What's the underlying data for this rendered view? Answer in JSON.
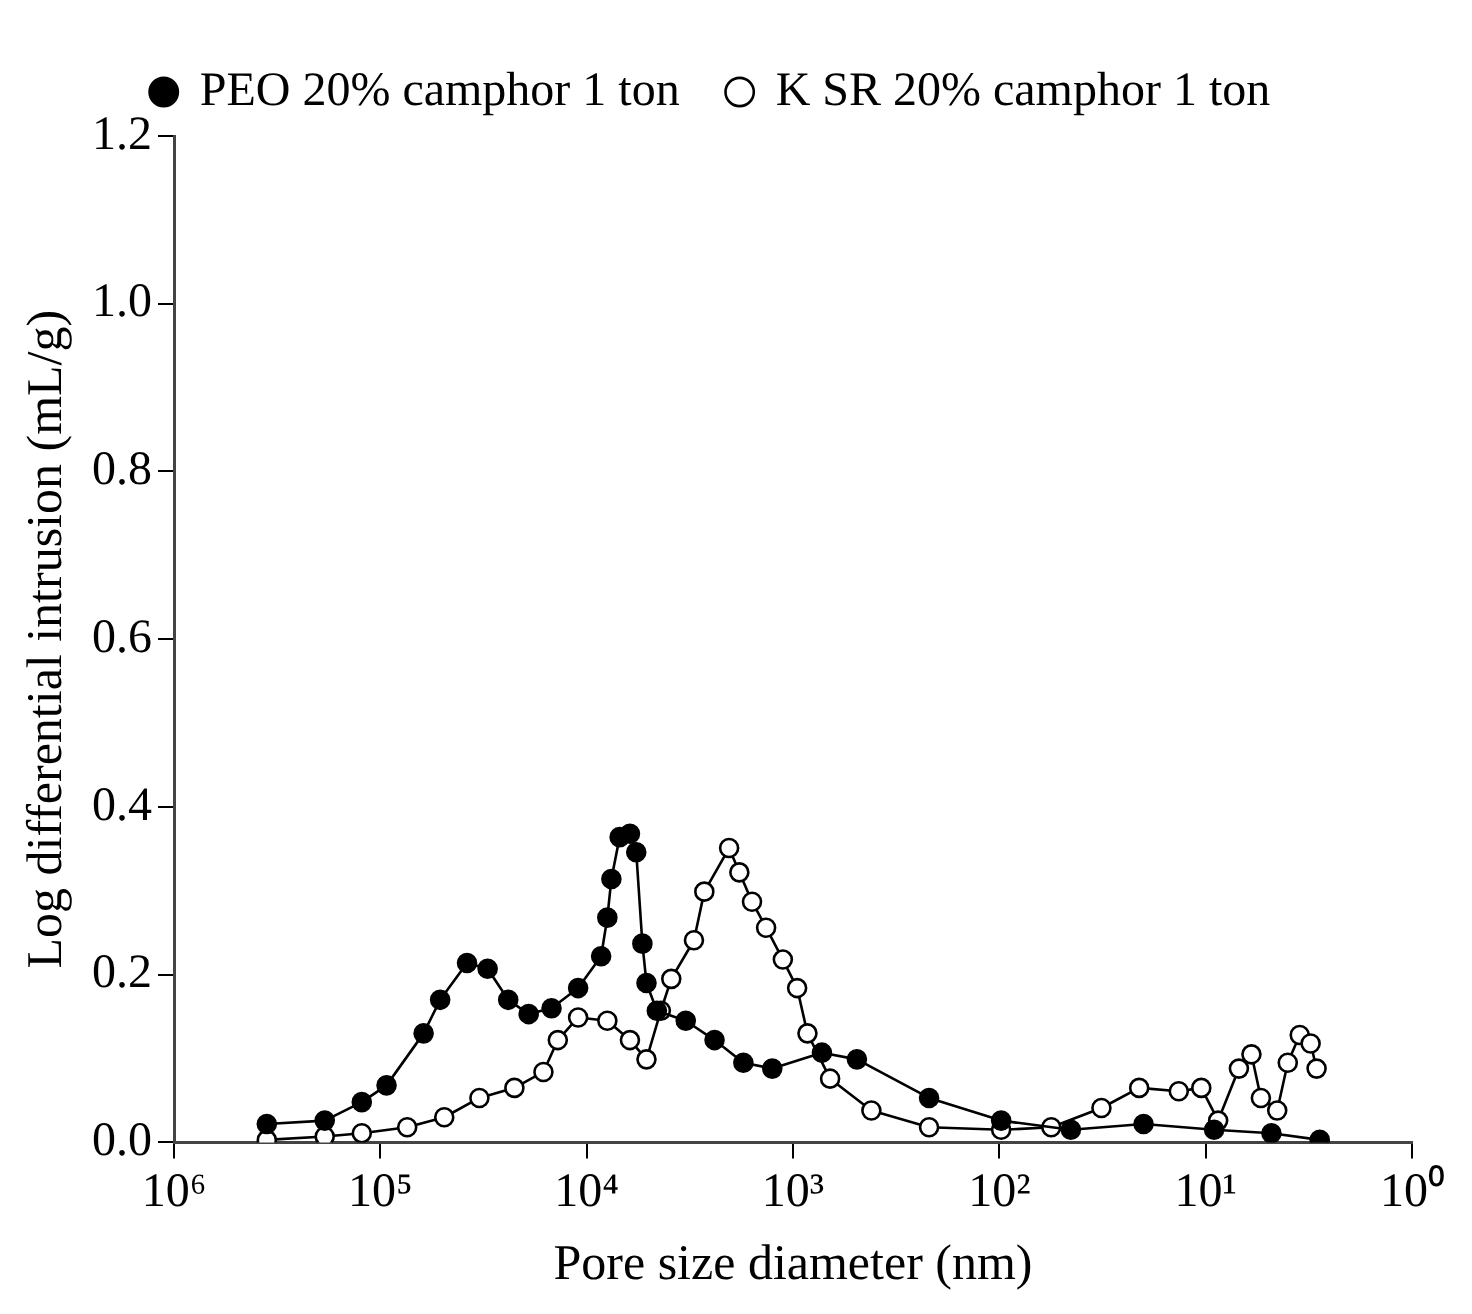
{
  "chart_data": {
    "type": "line",
    "xlabel": "Pore size diameter (nm)",
    "ylabel": "Log differential intrusion (mL/g)",
    "log": "x",
    "xlim": [
      1000000,
      1
    ],
    "xticks": [
      {
        "value": 1000000,
        "label": "10⁶"
      },
      {
        "value": 100000,
        "label": "10⁵"
      },
      {
        "value": 10000,
        "label": "10⁴"
      },
      {
        "value": 1000,
        "label": "10³"
      },
      {
        "value": 100,
        "label": "10²"
      },
      {
        "value": 10,
        "label": "10¹"
      },
      {
        "value": 1,
        "label": "10⁰"
      }
    ],
    "ylim": [
      0,
      1.2
    ],
    "yticks": [
      {
        "value": 0,
        "label": "0.0"
      },
      {
        "value": 0.2,
        "label": "0.2"
      },
      {
        "value": 0.4,
        "label": "0.4"
      },
      {
        "value": 0.6,
        "label": "0.6"
      },
      {
        "value": 0.8,
        "label": "0.8"
      },
      {
        "value": 1,
        "label": "1.0"
      },
      {
        "value": 1.2,
        "label": "1.2"
      }
    ],
    "grid": false,
    "legend": "top",
    "marker": "circle",
    "line_style": "solid",
    "series": [
      {
        "name": "PEO 20% camphor 1 ton",
        "color": "#000000",
        "x": [
          355000,
          186000,
          123000,
          93300,
          61700,
          51300,
          38000,
          30200,
          24000,
          19100,
          14800,
          11000,
          8510,
          7940,
          7590,
          6920,
          6170,
          5750,
          5370,
          5130,
          4570,
          3310,
          2400,
          1740,
          1260,
          724,
          490,
          219,
          98,
          45,
          20,
          9.1,
          4.8,
          2.8
        ],
        "values": [
          0.022,
          0.026,
          0.048,
          0.068,
          0.13,
          0.17,
          0.214,
          0.207,
          0.17,
          0.153,
          0.16,
          0.184,
          0.222,
          0.268,
          0.314,
          0.364,
          0.368,
          0.346,
          0.237,
          0.19,
          0.157,
          0.145,
          0.122,
          0.095,
          0.088,
          0.107,
          0.099,
          0.053,
          0.026,
          0.015,
          0.022,
          0.015,
          0.011,
          0.003
        ]
      },
      {
        "name": "K SR 20% camphor 1 ton",
        "color": "#000000",
        "x": [
          355000,
          186000,
          123000,
          74100,
          49000,
          33100,
          22400,
          16200,
          13800,
          11000,
          7940,
          6170,
          5130,
          4370,
          3890,
          3020,
          2690,
          2040,
          1820,
          1580,
          1350,
          1120,
          955,
          851,
          661,
          417,
          219,
          98,
          56,
          32,
          21,
          13.5,
          10.5,
          8.7,
          6.9,
          6.0,
          5.4,
          4.5,
          4.0,
          3.5,
          3.1,
          2.9
        ],
        "values": [
          0.003,
          0.007,
          0.011,
          0.018,
          0.03,
          0.053,
          0.065,
          0.084,
          0.122,
          0.149,
          0.145,
          0.122,
          0.099,
          0.157,
          0.195,
          0.241,
          0.299,
          0.351,
          0.322,
          0.287,
          0.256,
          0.218,
          0.184,
          0.13,
          0.076,
          0.038,
          0.018,
          0.015,
          0.018,
          0.041,
          0.065,
          0.061,
          0.065,
          0.026,
          0.088,
          0.105,
          0.053,
          0.038,
          0.095,
          0.128,
          0.118,
          0.088
        ]
      }
    ]
  }
}
